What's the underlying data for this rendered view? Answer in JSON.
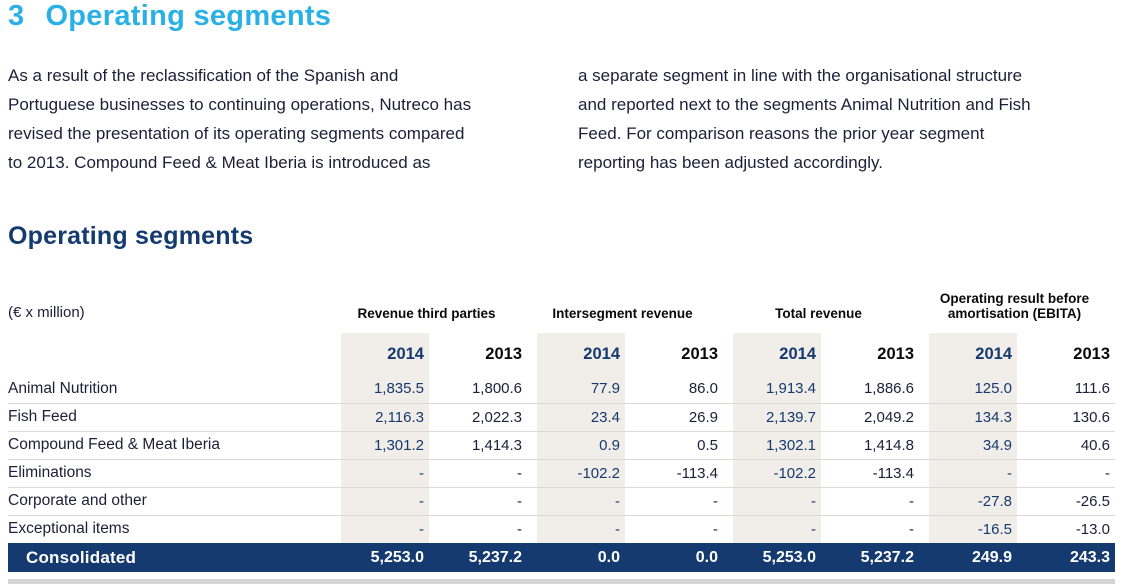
{
  "header": {
    "number": "3",
    "title": "Operating segments"
  },
  "intro": {
    "left_column": "As a result of the reclassification of the Spanish and\nPortuguese businesses to continuing operations, Nutreco has\nrevised the presentation of its operating segments compared\nto 2013. Compound Feed & Meat Iberia is introduced as",
    "right_column": "a separate segment in line with the organisational structure\nand reported next to the segments Animal Nutrition and Fish\nFeed. For comparison reasons the prior year segment\nreporting has been adjusted accordingly."
  },
  "table": {
    "title": "Operating segments",
    "unit_label": "(€ x million)",
    "groups": [
      "Revenue third parties",
      "Intersegment revenue",
      "Total revenue",
      "Operating result before\namortisation (EBITA)"
    ],
    "years": [
      "2014",
      "2013"
    ],
    "rows": [
      {
        "label": "Animal Nutrition",
        "values": [
          "1,835.5",
          "1,800.6",
          "77.9",
          "86.0",
          "1,913.4",
          "1,886.6",
          "125.0",
          "111.6"
        ]
      },
      {
        "label": "Fish Feed",
        "values": [
          "2,116.3",
          "2,022.3",
          "23.4",
          "26.9",
          "2,139.7",
          "2,049.2",
          "134.3",
          "130.6"
        ]
      },
      {
        "label": "Compound Feed & Meat Iberia",
        "values": [
          "1,301.2",
          "1,414.3",
          "0.9",
          "0.5",
          "1,302.1",
          "1,414.8",
          "34.9",
          "40.6"
        ]
      },
      {
        "label": "Eliminations",
        "values": [
          "-",
          "-",
          "-102.2",
          "-113.4",
          "-102.2",
          "-113.4",
          "-",
          "-"
        ]
      },
      {
        "label": "Corporate and other",
        "values": [
          "-",
          "-",
          "-",
          "-",
          "-",
          "-",
          "-27.8",
          "-26.5"
        ]
      },
      {
        "label": "Exceptional items",
        "values": [
          "-",
          "-",
          "-",
          "-",
          "-",
          "-",
          "-16.5",
          "-13.0"
        ]
      }
    ],
    "total": {
      "label": "Consolidated",
      "values": [
        "5,253.0",
        "5,237.2",
        "0.0",
        "0.0",
        "5,253.0",
        "5,237.2",
        "249.9",
        "243.3"
      ]
    }
  },
  "colors": {
    "accent_cyan": "#29b1e6",
    "navy": "#153a70",
    "beige_highlight": "#f1ede8",
    "row_separator": "#d9d9d9",
    "body_text": "#1e1e38"
  }
}
